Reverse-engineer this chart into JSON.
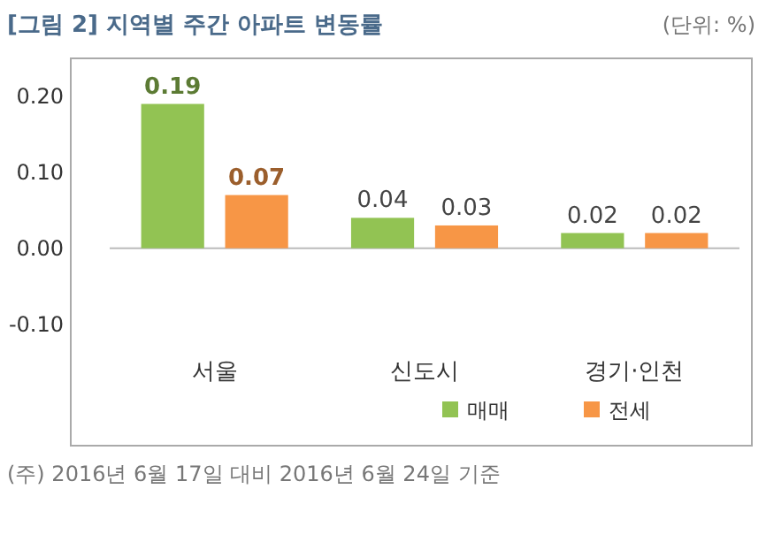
{
  "chart_data": {
    "type": "bar",
    "title": "[그림 2] 지역별 주간 아파트 변동률",
    "categories": [
      "서울",
      "신도시",
      "경기·인천"
    ],
    "series": [
      {
        "name": "매매",
        "color": "#92c353",
        "values": [
          0.19,
          0.04,
          0.02
        ]
      },
      {
        "name": "전세",
        "color": "#f79646",
        "values": [
          0.07,
          0.03,
          0.02
        ]
      }
    ],
    "ylim": [
      -0.26,
      0.25
    ],
    "yticks": [
      {
        "value": 0.2,
        "label": "0.20"
      },
      {
        "value": 0.1,
        "label": "0.10"
      },
      {
        "value": 0,
        "label": "0.00"
      },
      {
        "value": -0.1,
        "label": "-0.10"
      }
    ],
    "data_labels": true,
    "legend": "bottom",
    "annotations": [
      "(단위: %)",
      "(주) 2016년 6월 17일 대비 2016년 6월 24일 기준"
    ]
  }
}
